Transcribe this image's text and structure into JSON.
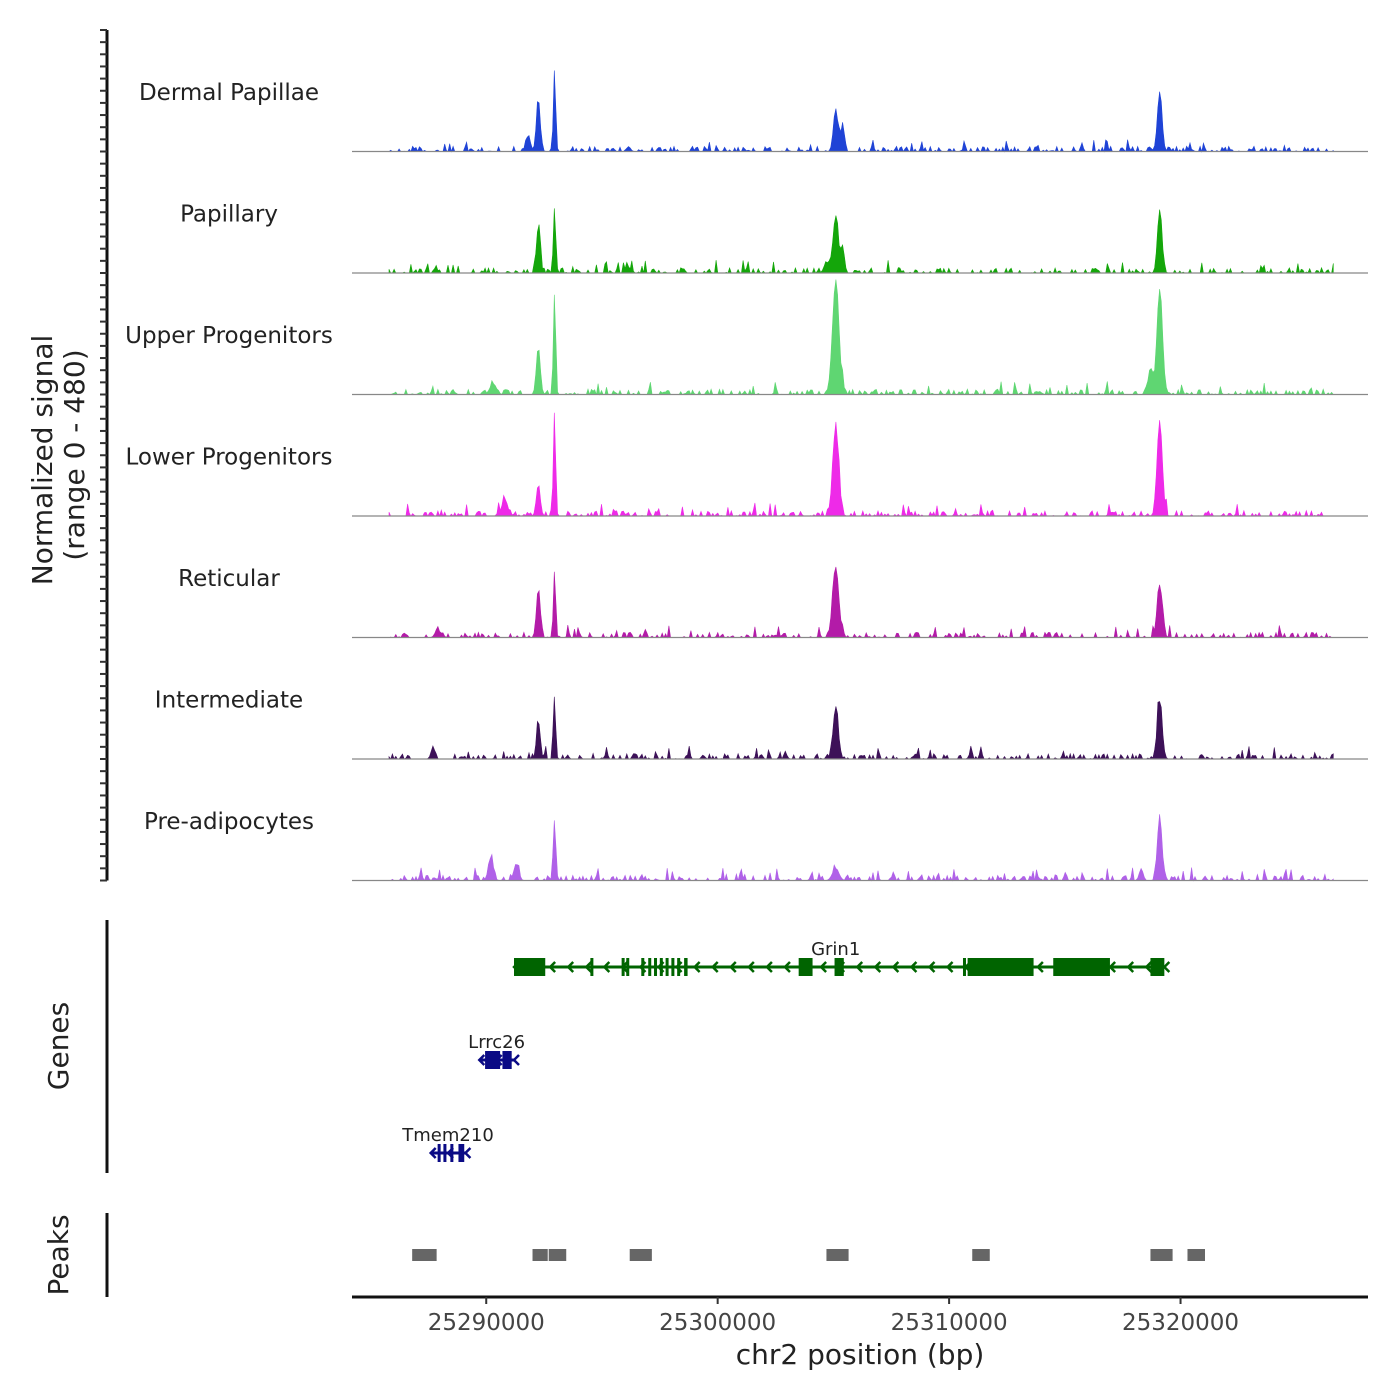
{
  "chart_data": {
    "type": "area",
    "title": "",
    "ylabel": "Normalized signal",
    "ylabel_range": "(range 0 - 480)",
    "ylim": [
      0,
      480
    ],
    "xlabel": "chr2 position (bp)",
    "xlim": [
      25284200,
      25328100
    ],
    "x_ticks": [
      25290000,
      25300000,
      25310000,
      25320000
    ],
    "x_tick_labels": [
      "25290000",
      "25300000",
      "25310000",
      "25320000"
    ],
    "peak_centers": [
      25292250,
      25292950,
      25295100,
      25305100,
      25305350,
      25319100,
      25319200
    ],
    "series": [
      {
        "name": "Dermal Papillae",
        "color": "#1f43d6",
        "peaks": [
          {
            "pos": 25292250,
            "height": 210,
            "width": 120
          },
          {
            "pos": 25292950,
            "height": 345,
            "width": 70
          },
          {
            "pos": 25291800,
            "height": 50,
            "width": 150
          },
          {
            "pos": 25305100,
            "height": 180,
            "width": 140
          },
          {
            "pos": 25305400,
            "height": 120,
            "width": 100
          },
          {
            "pos": 25319100,
            "height": 250,
            "width": 140
          },
          {
            "pos": 25320400,
            "height": 15,
            "width": 120
          }
        ]
      },
      {
        "name": "Papillary",
        "color": "#14a60a",
        "peaks": [
          {
            "pos": 25292250,
            "height": 190,
            "width": 120
          },
          {
            "pos": 25292950,
            "height": 275,
            "width": 70
          },
          {
            "pos": 25296100,
            "height": 30,
            "width": 150
          },
          {
            "pos": 25305100,
            "height": 240,
            "width": 160
          },
          {
            "pos": 25305400,
            "height": 110,
            "width": 110
          },
          {
            "pos": 25319100,
            "height": 265,
            "width": 140
          },
          {
            "pos": 25304700,
            "height": 45,
            "width": 150
          }
        ]
      },
      {
        "name": "Upper Progenitors",
        "color": "#5fd672",
        "peaks": [
          {
            "pos": 25292250,
            "height": 200,
            "width": 120
          },
          {
            "pos": 25292950,
            "height": 425,
            "width": 70
          },
          {
            "pos": 25290300,
            "height": 45,
            "width": 200
          },
          {
            "pos": 25305100,
            "height": 470,
            "width": 200
          },
          {
            "pos": 25319100,
            "height": 440,
            "width": 170
          },
          {
            "pos": 25318700,
            "height": 110,
            "width": 140
          }
        ]
      },
      {
        "name": "Lower Progenitors",
        "color": "#ee2ae8",
        "peaks": [
          {
            "pos": 25292250,
            "height": 130,
            "width": 120
          },
          {
            "pos": 25292950,
            "height": 440,
            "width": 70
          },
          {
            "pos": 25290800,
            "height": 70,
            "width": 180
          },
          {
            "pos": 25305100,
            "height": 370,
            "width": 180
          },
          {
            "pos": 25319100,
            "height": 400,
            "width": 160
          }
        ]
      },
      {
        "name": "Reticular",
        "color": "#b31ba8",
        "peaks": [
          {
            "pos": 25292250,
            "height": 190,
            "width": 120
          },
          {
            "pos": 25292950,
            "height": 280,
            "width": 70
          },
          {
            "pos": 25287900,
            "height": 35,
            "width": 150
          },
          {
            "pos": 25305100,
            "height": 295,
            "width": 190
          },
          {
            "pos": 25319100,
            "height": 220,
            "width": 160
          }
        ]
      },
      {
        "name": "Intermediate",
        "color": "#3d1158",
        "peaks": [
          {
            "pos": 25292250,
            "height": 160,
            "width": 110
          },
          {
            "pos": 25292950,
            "height": 265,
            "width": 70
          },
          {
            "pos": 25287700,
            "height": 50,
            "width": 120
          },
          {
            "pos": 25305100,
            "height": 215,
            "width": 160
          },
          {
            "pos": 25319100,
            "height": 240,
            "width": 150
          }
        ]
      },
      {
        "name": "Pre-adipocytes",
        "color": "#b061e8",
        "peaks": [
          {
            "pos": 25292950,
            "height": 255,
            "width": 80
          },
          {
            "pos": 25290200,
            "height": 95,
            "width": 150
          },
          {
            "pos": 25291300,
            "height": 70,
            "width": 150
          },
          {
            "pos": 25305100,
            "height": 50,
            "width": 200
          },
          {
            "pos": 25319100,
            "height": 270,
            "width": 140
          },
          {
            "pos": 25318300,
            "height": 50,
            "width": 120
          }
        ]
      }
    ],
    "genes": [
      {
        "name": "Grin1",
        "color": "#006400",
        "strand": "-",
        "start": 25291200,
        "end": 25319300,
        "exons": [
          [
            25291200,
            25292550
          ],
          [
            25294500,
            25294620
          ],
          [
            25295850,
            25295980
          ],
          [
            25296050,
            25296140
          ],
          [
            25296700,
            25296820
          ],
          [
            25297000,
            25297080
          ],
          [
            25297250,
            25297330
          ],
          [
            25297500,
            25297580
          ],
          [
            25297750,
            25297830
          ],
          [
            25298000,
            25298090
          ],
          [
            25298250,
            25298340
          ],
          [
            25298550,
            25298700
          ],
          [
            25303500,
            25304100
          ],
          [
            25305050,
            25305450
          ],
          [
            25310600,
            25310680
          ],
          [
            25310800,
            25313650
          ],
          [
            25314500,
            25316950
          ],
          [
            25318700,
            25319300
          ]
        ]
      },
      {
        "name": "Lrrc26",
        "color": "#0a0a85",
        "strand": "-",
        "start": 25289700,
        "end": 25291200,
        "exons": [
          [
            25289950,
            25290600
          ],
          [
            25290700,
            25291100
          ]
        ]
      },
      {
        "name": "Tmem210",
        "color": "#0a0a85",
        "strand": "-",
        "start": 25287600,
        "end": 25289100,
        "exons": [
          [
            25287900,
            25287980
          ],
          [
            25288150,
            25288230
          ],
          [
            25288450,
            25288550
          ],
          [
            25288800,
            25289050
          ]
        ]
      }
    ],
    "peaks": [
      [
        25286800,
        25287900
      ],
      [
        25292000,
        25292700
      ],
      [
        25292700,
        25293500
      ],
      [
        25296200,
        25297200
      ],
      [
        25304700,
        25305700
      ],
      [
        25311000,
        25311800
      ],
      [
        25318700,
        25319700
      ],
      [
        25320300,
        25321100
      ]
    ],
    "track_labels": {
      "genes": "Genes",
      "peaks": "Peaks"
    }
  }
}
